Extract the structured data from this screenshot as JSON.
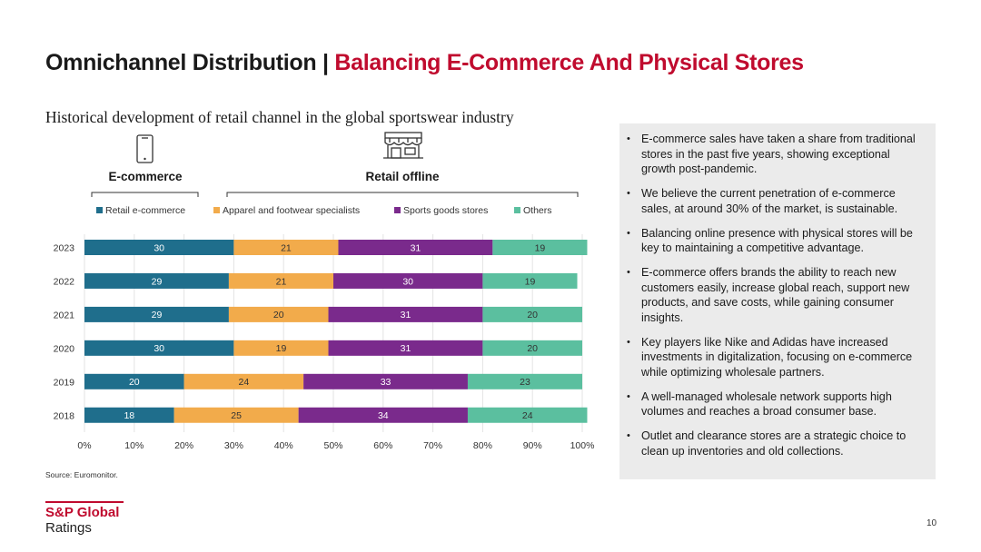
{
  "header": {
    "title_main": "Omnichannel Distribution | ",
    "title_accent": "Balancing E-Commerce And Physical Stores"
  },
  "chart_title": "Historical development of retail channel in the global sportswear industry",
  "groups": {
    "ecommerce_label": "E-commerce",
    "retail_label": "Retail offline"
  },
  "colors": {
    "accent": "#c00b2e",
    "retail_ecommerce": "#1f6e8c",
    "apparel": "#f2ab4b",
    "sports_goods": "#7a2a8c",
    "others": "#5bbf9f"
  },
  "chart_data": {
    "type": "bar",
    "orientation": "horizontal",
    "stacked": "percent",
    "categories": [
      "2023",
      "2022",
      "2021",
      "2020",
      "2019",
      "2018"
    ],
    "series": [
      {
        "name": "Retail e-commerce",
        "color": "#1f6e8c",
        "label_color": "#ffffff",
        "values": [
          30,
          29,
          29,
          30,
          20,
          18
        ]
      },
      {
        "name": "Apparel and footwear specialists",
        "color": "#f2ab4b",
        "label_color": "#333333",
        "values": [
          21,
          21,
          20,
          19,
          24,
          25
        ]
      },
      {
        "name": "Sports goods stores",
        "color": "#7a2a8c",
        "label_color": "#ffffff",
        "values": [
          31,
          30,
          31,
          31,
          33,
          34
        ]
      },
      {
        "name": "Others",
        "color": "#5bbf9f",
        "label_color": "#333333",
        "values": [
          19,
          19,
          20,
          20,
          23,
          24
        ]
      }
    ],
    "x_ticks": [
      "0%",
      "10%",
      "20%",
      "30%",
      "40%",
      "50%",
      "60%",
      "70%",
      "80%",
      "90%",
      "100%"
    ],
    "xlim": [
      0,
      100
    ],
    "legend_position": "top"
  },
  "bullets": [
    "E-commerce sales have taken a share from traditional stores in the past five years, showing exceptional growth post-pandemic.",
    "We believe the current penetration of e-commerce sales, at around 30% of the market, is sustainable.",
    "Balancing online presence with physical stores will be key to maintaining a competitive advantage.",
    "E-commerce offers brands the ability to reach new customers easily, increase global reach, support new products, and save costs, while gaining consumer insights.",
    "Key players like Nike and Adidas have increased investments in digitalization, focusing on e-commerce while optimizing wholesale partners.",
    "A well-managed wholesale network supports high volumes and reaches a broad consumer base.",
    "Outlet and clearance stores are a strategic choice to clean up inventories and old collections."
  ],
  "source": "Source: Euromonitor.",
  "logo": {
    "line1": "S&P Global",
    "line2": "Ratings"
  },
  "page_number": "10"
}
